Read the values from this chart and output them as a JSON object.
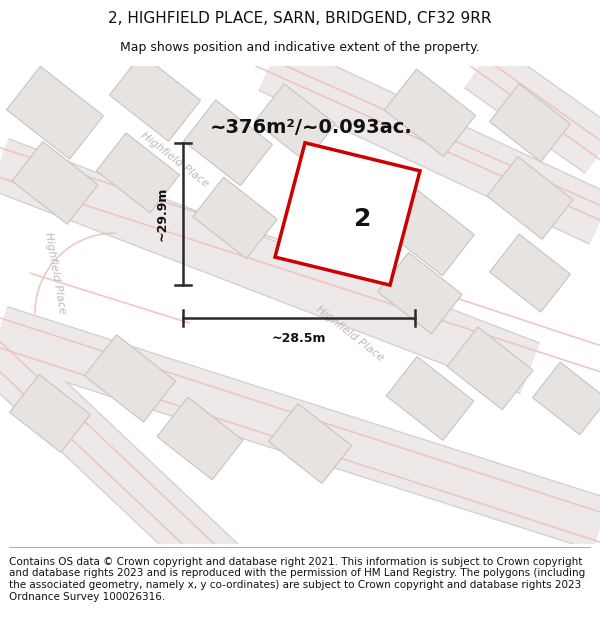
{
  "title": "2, HIGHFIELD PLACE, SARN, BRIDGEND, CF32 9RR",
  "subtitle": "Map shows position and indicative extent of the property.",
  "footer": "Contains OS data © Crown copyright and database right 2021. This information is subject to Crown copyright and database rights 2023 and is reproduced with the permission of HM Land Registry. The polygons (including the associated geometry, namely x, y co-ordinates) are subject to Crown copyright and database rights 2023 Ordnance Survey 100026316.",
  "area_text": "~376m²/~0.093ac.",
  "property_number": "2",
  "dim_height": "~29.9m",
  "dim_width": "~28.5m",
  "map_bg": "#f5f3f3",
  "plot_polygon_color": "#cc0000",
  "building_fill": "#e6e3e1",
  "building_stroke": "#c8c4c2",
  "road_label_color": "#c0b8b8",
  "dim_line_color": "#2a2a2a",
  "text_color": "#111111",
  "title_fontsize": 11,
  "subtitle_fontsize": 9,
  "footer_fontsize": 7.5,
  "road_pink_color": "#f0c0c0",
  "road_gray_color": "#d8d0d0",
  "road_fill_light": "#ede9e9"
}
